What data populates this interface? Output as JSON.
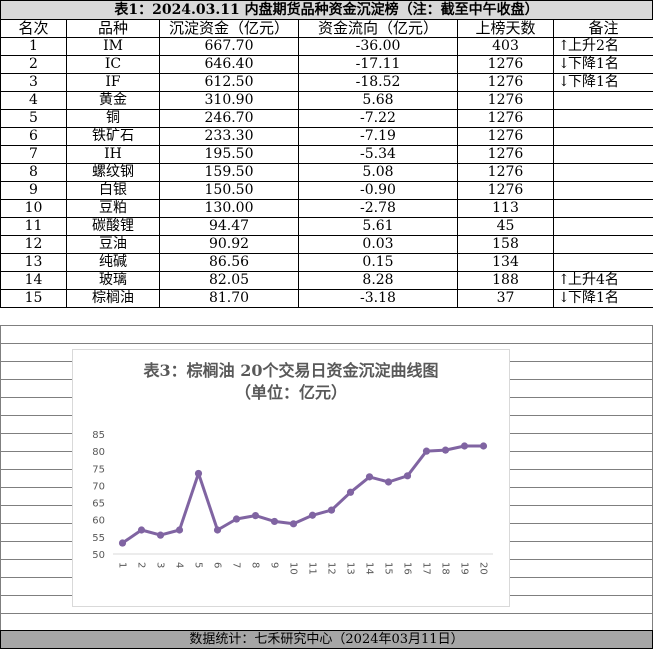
{
  "title": "表1：2024.03.11 内盘期货品种资金沉淀榜（注：截至中午收盘）",
  "columns": [
    "名次",
    "品种",
    "沉淀资金（亿元）",
    "资金流向（亿元）",
    "上榜天数",
    "备注"
  ],
  "rows": [
    {
      "rank": "1",
      "name": "IM",
      "capital": "667.70",
      "flow": "-36.00",
      "days": "403",
      "note_arrow": "↑",
      "note": "上升2名"
    },
    {
      "rank": "2",
      "name": "IC",
      "capital": "646.40",
      "flow": "-17.11",
      "days": "1276",
      "note_arrow": "↓",
      "note": "下降1名"
    },
    {
      "rank": "3",
      "name": "IF",
      "capital": "612.50",
      "flow": "-18.52",
      "days": "1276",
      "note_arrow": "↓",
      "note": "下降1名"
    },
    {
      "rank": "4",
      "name": "黄金",
      "capital": "310.90",
      "flow": "5.68",
      "days": "1276",
      "note_arrow": "",
      "note": ""
    },
    {
      "rank": "5",
      "name": "铜",
      "capital": "246.70",
      "flow": "-7.22",
      "days": "1276",
      "note_arrow": "",
      "note": ""
    },
    {
      "rank": "6",
      "name": "铁矿石",
      "capital": "233.30",
      "flow": "-7.19",
      "days": "1276",
      "note_arrow": "",
      "note": ""
    },
    {
      "rank": "7",
      "name": "IH",
      "capital": "195.50",
      "flow": "-5.34",
      "days": "1276",
      "note_arrow": "",
      "note": ""
    },
    {
      "rank": "8",
      "name": "螺纹钢",
      "capital": "159.50",
      "flow": "5.08",
      "days": "1276",
      "note_arrow": "",
      "note": ""
    },
    {
      "rank": "9",
      "name": "白银",
      "capital": "150.50",
      "flow": "-0.90",
      "days": "1276",
      "note_arrow": "",
      "note": ""
    },
    {
      "rank": "10",
      "name": "豆粕",
      "capital": "130.00",
      "flow": "-2.78",
      "days": "113",
      "note_arrow": "",
      "note": ""
    },
    {
      "rank": "11",
      "name": "碳酸锂",
      "capital": "94.47",
      "flow": "5.61",
      "days": "45",
      "note_arrow": "",
      "note": ""
    },
    {
      "rank": "12",
      "name": "豆油",
      "capital": "90.92",
      "flow": "0.03",
      "days": "158",
      "note_arrow": "",
      "note": ""
    },
    {
      "rank": "13",
      "name": "纯碱",
      "capital": "86.56",
      "flow": "0.15",
      "days": "134",
      "note_arrow": "",
      "note": ""
    },
    {
      "rank": "14",
      "name": "玻璃",
      "capital": "82.05",
      "flow": "8.28",
      "days": "188",
      "note_arrow": "↑",
      "note": "上升4名"
    },
    {
      "rank": "15",
      "name": "棕榈油",
      "capital": "81.70",
      "flow": "-3.18",
      "days": "37",
      "note_arrow": "↓",
      "note": "下降1名"
    }
  ],
  "chart_data": {
    "type": "line",
    "title": "表3：棕榈油 20个交易日资金沉淀曲线图",
    "subtitle": "（单位：亿元）",
    "x": [
      1,
      2,
      3,
      4,
      5,
      6,
      7,
      8,
      9,
      10,
      11,
      12,
      13,
      14,
      15,
      16,
      17,
      18,
      19,
      20
    ],
    "values": [
      53.2,
      57.0,
      55.5,
      57.0,
      73.5,
      57.0,
      60.2,
      61.2,
      59.5,
      58.8,
      61.3,
      62.8,
      68.0,
      72.5,
      71.0,
      72.8,
      80.0,
      80.3,
      81.5,
      81.5
    ],
    "yticks": [
      50,
      55,
      60,
      65,
      70,
      75,
      80,
      85
    ],
    "ylim": [
      50,
      85
    ],
    "grid": false,
    "legend": "none",
    "line_color": "#8064a2"
  },
  "footer": "数据统计：七禾研究中心（2024年03月11日）"
}
